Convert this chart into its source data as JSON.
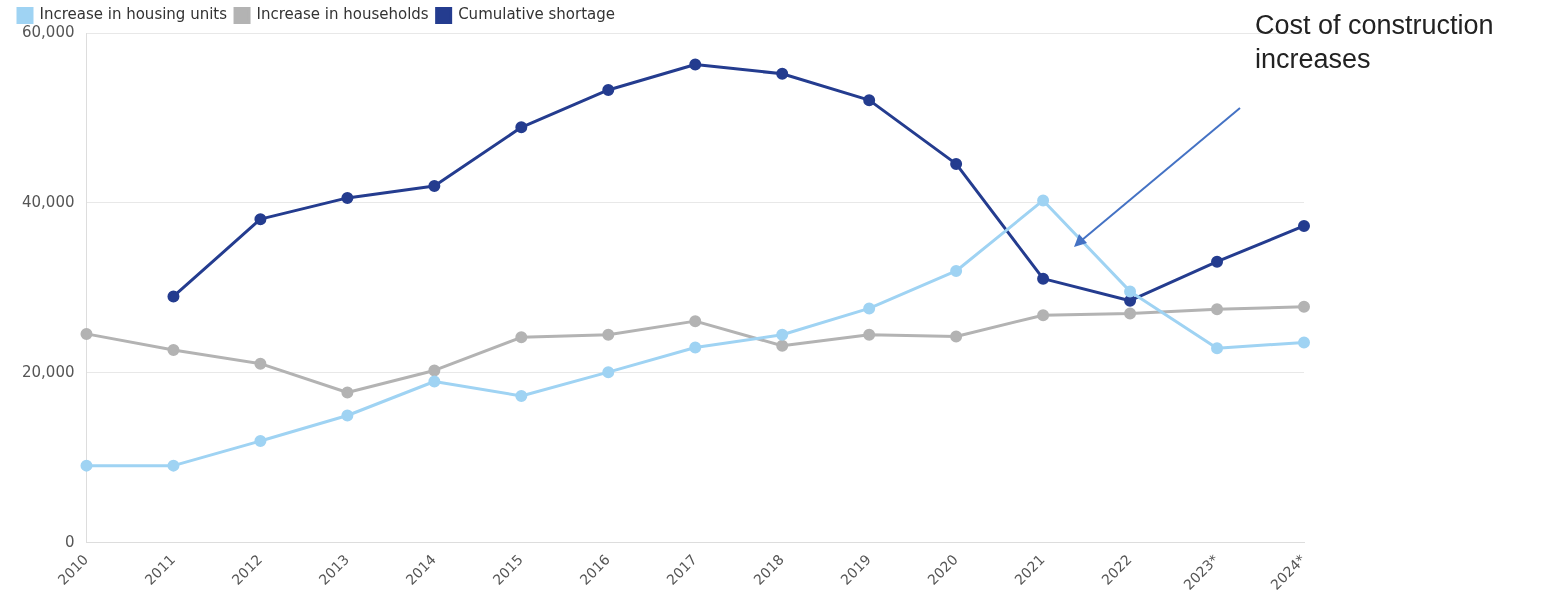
{
  "chart_data": {
    "type": "line",
    "categories": [
      "2010",
      "2011",
      "2012",
      "2013",
      "2014",
      "2015",
      "2016",
      "2017",
      "2018",
      "2019",
      "2020",
      "2021",
      "2022",
      "2023*",
      "2024*"
    ],
    "series": [
      {
        "name": "Increase in housing units",
        "color": "#9fd3f3",
        "values": [
          9100,
          9100,
          12000,
          15000,
          19000,
          17300,
          20100,
          23000,
          24500,
          27600,
          32000,
          40300,
          29600,
          22900,
          23600
        ]
      },
      {
        "name": "Increase in households",
        "color": "#b3b3b3",
        "values": [
          24600,
          22700,
          21100,
          17700,
          20300,
          24200,
          24500,
          26100,
          23200,
          24500,
          24300,
          26800,
          27000,
          27500,
          27800
        ]
      },
      {
        "name": "Cumulative shortage",
        "color": "#243c8f",
        "values": [
          null,
          29000,
          38100,
          40600,
          42000,
          48900,
          53300,
          56300,
          55200,
          52100,
          44600,
          31100,
          28500,
          33100,
          37300
        ]
      }
    ],
    "ylim": [
      0,
      60000
    ],
    "yticks": [
      {
        "value": 0,
        "label": "0"
      },
      {
        "value": 20000,
        "label": "20,000"
      },
      {
        "value": 40000,
        "label": "40,000"
      },
      {
        "value": 60000,
        "label": "60,000"
      }
    ],
    "grid": "y",
    "legend": "top left",
    "marker": "circle",
    "line_style": "solid",
    "annotations": [
      "Cost of construction increases"
    ]
  }
}
